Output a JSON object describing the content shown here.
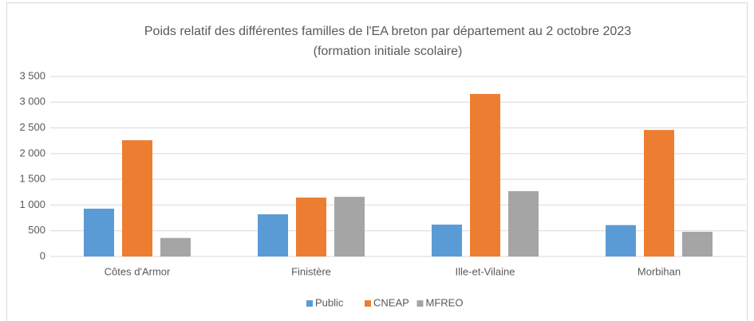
{
  "chart_data": {
    "type": "bar",
    "title": "Poids relatif des différentes familles de l'EA breton par département au 2 octobre 2023",
    "subtitle": "(formation initiale scolaire)",
    "categories": [
      "Côtes d'Armor",
      "Finistère",
      "Ille-et-Vilaine",
      "Morbihan"
    ],
    "series": [
      {
        "name": "Public",
        "color": "#5b9bd5",
        "values": [
          930,
          820,
          620,
          610
        ]
      },
      {
        "name": "CNEAP",
        "color": "#ed7d31",
        "values": [
          2260,
          1145,
          3160,
          2460
        ]
      },
      {
        "name": "MFREO",
        "color": "#a5a5a5",
        "values": [
          360,
          1160,
          1270,
          480
        ]
      }
    ],
    "ylim": [
      0,
      3500
    ],
    "yticks": [
      0,
      500,
      {
        "value": 1000,
        "label": "1 000"
      },
      {
        "value": 1500,
        "label": "1 500"
      },
      {
        "value": 2000,
        "label": "2 000"
      },
      {
        "value": 2500,
        "label": "2 500"
      },
      {
        "value": 3000,
        "label": "3 000"
      },
      {
        "value": 3500,
        "label": "3 500"
      }
    ],
    "grid": true,
    "legend": "bottom"
  }
}
